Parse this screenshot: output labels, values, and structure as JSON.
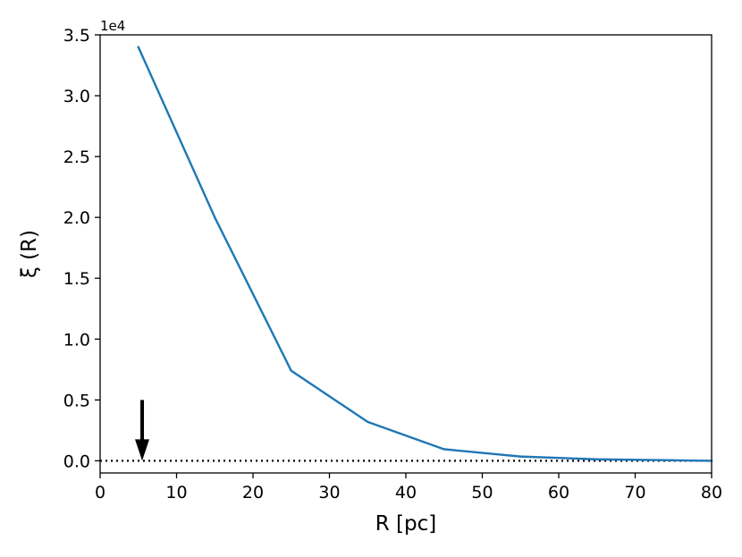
{
  "chart_data": {
    "type": "line",
    "xlabel": "R [pc]",
    "ylabel": "ξ (R)",
    "y_offset_label": "1e4",
    "xlim": [
      0,
      80
    ],
    "ylim": [
      -1000,
      35000
    ],
    "grid": false,
    "legend": "none",
    "x_ticks": [
      0,
      10,
      20,
      30,
      40,
      50,
      60,
      70,
      80
    ],
    "x_tick_labels": [
      "0",
      "10",
      "20",
      "30",
      "40",
      "50",
      "60",
      "70",
      "80"
    ],
    "y_ticks": [
      0,
      5000,
      10000,
      15000,
      20000,
      25000,
      30000,
      35000
    ],
    "y_tick_labels": [
      "0.0",
      "0.5",
      "1.0",
      "1.5",
      "2.0",
      "2.5",
      "3.0",
      "3.5"
    ],
    "series": [
      {
        "color": "#1f77b4",
        "x": [
          5,
          15,
          25,
          35,
          45,
          55,
          65,
          75,
          80
        ],
        "y": [
          34000,
          20000,
          7400,
          3200,
          950,
          350,
          120,
          40,
          0
        ]
      }
    ],
    "reference_line": {
      "y": 0,
      "style": "dotted",
      "color": "#000000"
    },
    "arrow": {
      "x": 5.5,
      "y_from": 5000,
      "y_to": 0,
      "color": "#000000"
    }
  }
}
